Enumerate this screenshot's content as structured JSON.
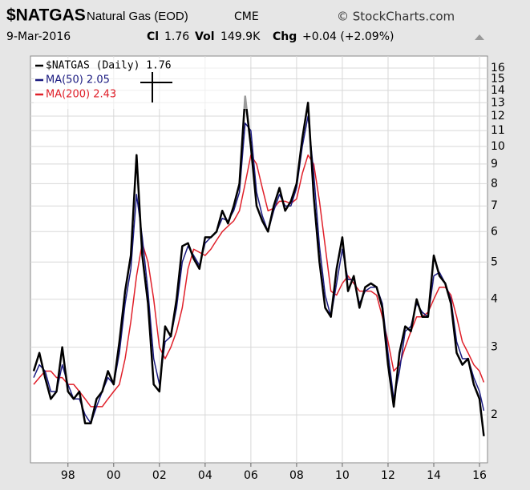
{
  "header": {
    "symbol": "$NATGAS",
    "name": "Natural Gas (EOD)",
    "exchange": "CME",
    "source": "© StockCharts.com",
    "date": "9-Mar-2016",
    "close_label": "Cl",
    "close": "1.76",
    "vol_label": "Vol",
    "vol": "149.9K",
    "chg_label": "Chg",
    "chg": "+0.04 (+2.09%)"
  },
  "chart_data": {
    "type": "line",
    "log_scale": true,
    "grid": true,
    "legend": "upper left",
    "x": [
      1996.5,
      1996.75,
      1997.0,
      1997.25,
      1997.5,
      1997.75,
      1998.0,
      1998.25,
      1998.5,
      1998.75,
      1999.0,
      1999.25,
      1999.5,
      1999.75,
      2000.0,
      2000.25,
      2000.5,
      2000.75,
      2001.0,
      2001.25,
      2001.5,
      2001.75,
      2002.0,
      2002.25,
      2002.5,
      2002.75,
      2003.0,
      2003.25,
      2003.5,
      2003.75,
      2004.0,
      2004.25,
      2004.5,
      2004.75,
      2005.0,
      2005.25,
      2005.5,
      2005.75,
      2006.0,
      2006.25,
      2006.5,
      2006.75,
      2007.0,
      2007.25,
      2007.5,
      2007.75,
      2008.0,
      2008.25,
      2008.5,
      2008.75,
      2009.0,
      2009.25,
      2009.5,
      2009.75,
      2010.0,
      2010.25,
      2010.5,
      2010.75,
      2011.0,
      2011.25,
      2011.5,
      2011.75,
      2012.0,
      2012.25,
      2012.5,
      2012.75,
      2013.0,
      2013.25,
      2013.5,
      2013.75,
      2014.0,
      2014.25,
      2014.5,
      2014.75,
      2015.0,
      2015.25,
      2015.5,
      2015.75,
      2016.0,
      2016.19
    ],
    "series": [
      {
        "name": "$NATGAS (Daily) 1.76",
        "color": "#000000",
        "width": 2.5,
        "values": [
          2.6,
          2.9,
          2.5,
          2.2,
          2.3,
          3.0,
          2.3,
          2.2,
          2.3,
          1.9,
          1.9,
          2.2,
          2.3,
          2.6,
          2.4,
          3.1,
          4.2,
          5.2,
          9.5,
          5.2,
          3.9,
          2.4,
          2.3,
          3.4,
          3.2,
          4.0,
          5.5,
          5.6,
          5.1,
          4.8,
          5.8,
          5.8,
          6.0,
          6.8,
          6.3,
          7.0,
          8.0,
          13.5,
          10.0,
          7.0,
          6.4,
          6.0,
          7.0,
          7.8,
          6.8,
          7.2,
          8.0,
          10.5,
          13.0,
          7.4,
          5.0,
          3.8,
          3.6,
          4.8,
          5.8,
          4.2,
          4.6,
          3.8,
          4.3,
          4.4,
          4.3,
          3.8,
          2.7,
          2.1,
          2.9,
          3.4,
          3.3,
          4.0,
          3.6,
          3.6,
          5.2,
          4.6,
          4.4,
          3.9,
          2.9,
          2.7,
          2.8,
          2.4,
          2.2,
          1.76
        ]
      },
      {
        "name": "MA(50) 2.05",
        "color": "#1a1a80",
        "width": 1.5,
        "values": [
          2.5,
          2.7,
          2.6,
          2.3,
          2.3,
          2.7,
          2.4,
          2.2,
          2.2,
          2.0,
          1.9,
          2.1,
          2.3,
          2.5,
          2.4,
          2.9,
          3.9,
          4.8,
          7.5,
          5.8,
          4.2,
          2.8,
          2.4,
          3.1,
          3.2,
          3.8,
          5.0,
          5.5,
          5.2,
          4.9,
          5.6,
          5.8,
          6.0,
          6.5,
          6.4,
          6.8,
          7.6,
          11.5,
          11.0,
          7.6,
          6.6,
          6.0,
          6.8,
          7.5,
          7.0,
          7.0,
          7.8,
          10.0,
          12.0,
          8.5,
          5.5,
          4.1,
          3.6,
          4.4,
          5.4,
          4.5,
          4.5,
          3.9,
          4.2,
          4.3,
          4.3,
          3.9,
          2.9,
          2.2,
          2.6,
          3.3,
          3.4,
          3.9,
          3.7,
          3.6,
          4.6,
          4.7,
          4.4,
          4.0,
          3.1,
          2.8,
          2.8,
          2.5,
          2.3,
          2.05
        ]
      },
      {
        "name": "MA(200) 2.43",
        "color": "#e0202a",
        "width": 1.5,
        "values": [
          2.4,
          2.5,
          2.6,
          2.6,
          2.5,
          2.5,
          2.4,
          2.4,
          2.3,
          2.2,
          2.1,
          2.1,
          2.1,
          2.2,
          2.3,
          2.4,
          2.8,
          3.5,
          4.6,
          5.6,
          5.0,
          4.0,
          3.0,
          2.8,
          3.0,
          3.3,
          3.8,
          4.8,
          5.4,
          5.3,
          5.2,
          5.4,
          5.7,
          6.0,
          6.2,
          6.4,
          6.8,
          8.0,
          9.5,
          9.0,
          7.8,
          6.8,
          6.9,
          7.2,
          7.2,
          7.1,
          7.3,
          8.5,
          9.5,
          9.0,
          7.2,
          5.5,
          4.2,
          4.1,
          4.4,
          4.6,
          4.4,
          4.2,
          4.2,
          4.2,
          4.1,
          3.6,
          3.1,
          2.6,
          2.7,
          3.0,
          3.3,
          3.6,
          3.6,
          3.7,
          4.0,
          4.3,
          4.3,
          4.1,
          3.6,
          3.1,
          2.9,
          2.7,
          2.6,
          2.43
        ]
      }
    ],
    "xlim": [
      1996.36,
      2016.35
    ],
    "xticks": [
      {
        "value": 1998,
        "label": "98"
      },
      {
        "value": 2000,
        "label": "00"
      },
      {
        "value": 2002,
        "label": "02"
      },
      {
        "value": 2004,
        "label": "04"
      },
      {
        "value": 2006,
        "label": "06"
      },
      {
        "value": 2008,
        "label": "08"
      },
      {
        "value": 2010,
        "label": "10"
      },
      {
        "value": 2012,
        "label": "12"
      },
      {
        "value": 2014,
        "label": "14"
      },
      {
        "value": 2016,
        "label": "16"
      }
    ],
    "ylim": [
      1.5,
      17.2
    ],
    "yticks": [
      2,
      3,
      4,
      5,
      6,
      7,
      8,
      9,
      10,
      11,
      12,
      13,
      14,
      15,
      16
    ]
  }
}
